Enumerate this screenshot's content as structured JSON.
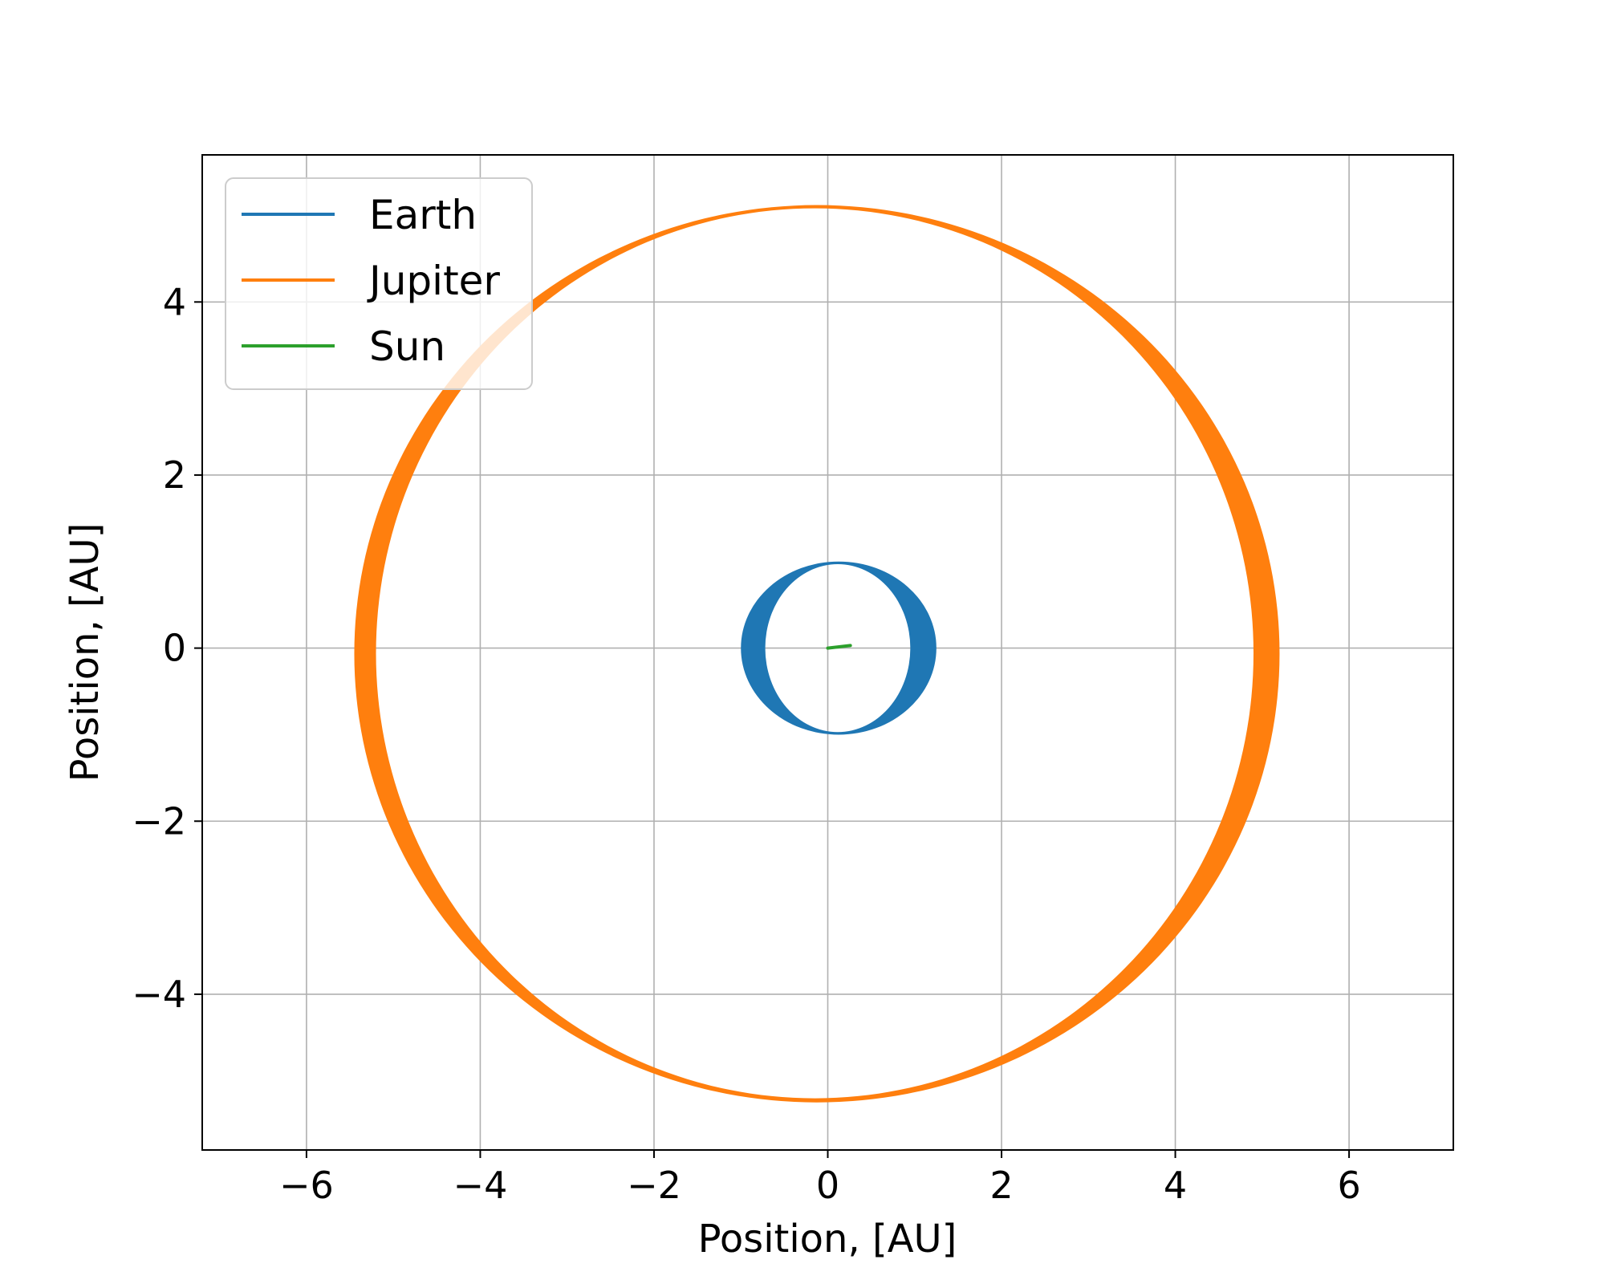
{
  "chart_data": {
    "type": "line",
    "title": "",
    "xlabel": "Position, [AU]",
    "ylabel": "Position, [AU]",
    "xlim": [
      -7.2,
      7.2
    ],
    "ylim": [
      -5.8,
      5.7
    ],
    "xticks": [
      -6,
      -4,
      -2,
      0,
      2,
      4,
      6
    ],
    "yticks": [
      -4,
      -2,
      0,
      2,
      4
    ],
    "xtick_labels": [
      "−6",
      "−4",
      "−2",
      "0",
      "2",
      "4",
      "6"
    ],
    "ytick_labels": [
      "−4",
      "−2",
      "0",
      "2",
      "4"
    ],
    "grid": true,
    "legend_position": "upper-left",
    "series": [
      {
        "name": "Earth",
        "color": "#1f77b4",
        "shape": "ring-band",
        "outer": {
          "x_min": -1.0,
          "x_max": 1.25,
          "y_min": -1.0,
          "y_max": 1.0
        },
        "inner": {
          "x_min": -0.72,
          "x_max": 0.95,
          "y_min": -0.97,
          "y_max": 0.97
        }
      },
      {
        "name": "Jupiter",
        "color": "#ff7f0e",
        "shape": "ring-band",
        "outer": {
          "x_min": -5.45,
          "x_max": 5.2,
          "y_min": -5.25,
          "y_max": 5.12
        },
        "inner": {
          "x_min": -5.2,
          "x_max": 4.9,
          "y_min": -5.2,
          "y_max": 5.08
        }
      },
      {
        "name": "Sun",
        "color": "#2ca02c",
        "shape": "line",
        "x": [
          0.0,
          0.26
        ],
        "y": [
          0.0,
          0.03
        ]
      }
    ]
  }
}
